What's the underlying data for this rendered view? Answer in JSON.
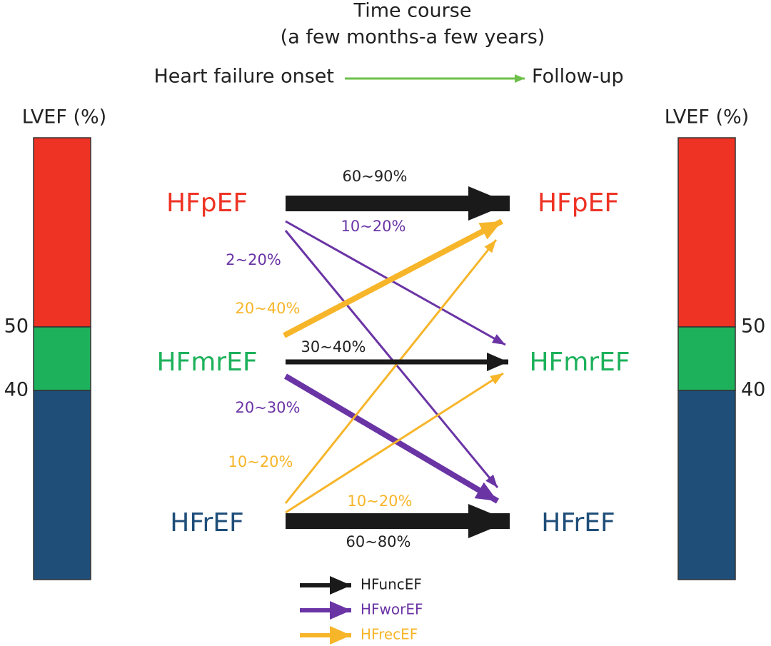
{
  "header": {
    "title": "Time course",
    "subtitle": "(a few months-a few years)",
    "start": "Heart failure onset",
    "end": "Follow-up"
  },
  "scales": [
    {
      "label": "LVEF (%)",
      "ticks": [
        "50",
        "40"
      ]
    },
    {
      "label": "LVEF (%)",
      "ticks": [
        "50",
        "40"
      ]
    }
  ],
  "nodes": {
    "onset": [
      "HFpEF",
      "HFmrEF",
      "HFrEF"
    ],
    "follow_up": [
      "HFpEF",
      "HFmrEF",
      "HFrEF"
    ]
  },
  "transitions": [
    "60~90%",
    "10~20%",
    "2~20%",
    "20~40%",
    "30~40%",
    "20~30%",
    "10~20%",
    "10~20%",
    "60~80%"
  ],
  "legend": [
    "HFuncEF",
    "HFworEF",
    "HFrecEF"
  ]
}
